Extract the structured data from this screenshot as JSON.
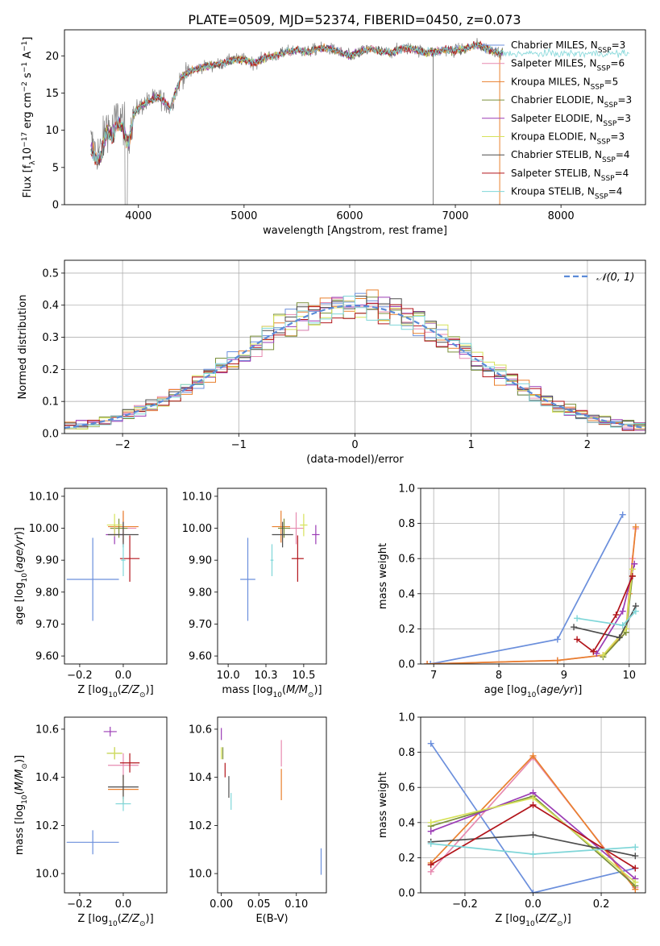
{
  "figure": {
    "title": "PLATE=0509, MJD=52374, FIBERID=0450, z=0.073"
  },
  "models": [
    {
      "name": "Chabrier MILES",
      "nssp": "3",
      "color": "#6b8fdc"
    },
    {
      "name": "Salpeter MILES",
      "nssp": "6",
      "color": "#e78ab0"
    },
    {
      "name": "Kroupa MILES",
      "nssp": "5",
      "color": "#e9802e"
    },
    {
      "name": "Chabrier ELODIE",
      "nssp": "3",
      "color": "#7a8f3a"
    },
    {
      "name": "Salpeter ELODIE",
      "nssp": "3",
      "color": "#9b3cb5"
    },
    {
      "name": "Kroupa ELODIE",
      "nssp": "3",
      "color": "#d6e25a"
    },
    {
      "name": "Chabrier STELIB",
      "nssp": "4",
      "color": "#4d4d4d"
    },
    {
      "name": "Salpeter STELIB",
      "nssp": "4",
      "color": "#b2151b"
    },
    {
      "name": "Kroupa STELIB",
      "nssp": "4",
      "color": "#7fd6d8"
    }
  ],
  "legend_text": {
    "nssp_prefix": "N",
    "nssp_sub": "SSP",
    "nssp_eq": "="
  },
  "chart_data": [
    {
      "id": "spectrum",
      "type": "line",
      "xlabel": "wavelength [Angstrom, rest frame]",
      "ylabel": "Flux [f_λ10^-17 erg cm^-2 s^-1 A^-1]",
      "xlim": [
        3300,
        8800
      ],
      "ylim": [
        0,
        23.5
      ],
      "xticks": [
        4000,
        5000,
        6000,
        7000,
        8000
      ],
      "yticks": [
        0,
        5,
        10,
        15,
        20
      ],
      "data_color": "#808080",
      "legend_position": "right",
      "x": [
        3550,
        3600,
        3650,
        3700,
        3750,
        3800,
        3850,
        3900,
        3950,
        4000,
        4100,
        4200,
        4300,
        4400,
        4500,
        4600,
        4700,
        4800,
        4900,
        5000,
        5100,
        5200,
        5300,
        5400,
        5500,
        5600,
        5700,
        5800,
        5900,
        6000,
        6100,
        6200,
        6300,
        6400,
        6500,
        6600,
        6700,
        6800,
        6900,
        7000,
        7100,
        7200,
        7300,
        7400,
        7500,
        7600,
        7700,
        7800,
        7900,
        8000,
        8100,
        8200,
        8300,
        8400,
        8500,
        8600,
        8700
      ],
      "flux": [
        8.5,
        7,
        7.5,
        11,
        10,
        12,
        11.5,
        9,
        12,
        13,
        14,
        14.5,
        13,
        17,
        18,
        18.5,
        18.7,
        19,
        19.5,
        19.5,
        19,
        19.8,
        20,
        20.5,
        20.8,
        20.5,
        21,
        21,
        20.5,
        20,
        20.5,
        21,
        20.5,
        20.5,
        21,
        21,
        20.5,
        20.5,
        20.8,
        20.7,
        21,
        21.5,
        21,
        20.5,
        20.3,
        20.3,
        20.3,
        20.3,
        20.3,
        20.3,
        20.3,
        20.3,
        20.3,
        20.3,
        20.3,
        20.3,
        20.3
      ],
      "data_xmax": 7450
    },
    {
      "id": "residuals",
      "type": "histogram",
      "xlabel": "(data-model)/error",
      "ylabel": "Normed distribution",
      "xlim": [
        -2.5,
        2.5
      ],
      "ylim": [
        0,
        0.54
      ],
      "xticks": [
        -2,
        -1,
        0,
        1,
        2
      ],
      "yticks": [
        0,
        0.1,
        0.2,
        0.3,
        0.4,
        0.5
      ],
      "grid": true,
      "gaussian_label": "𝒩(0, 1)",
      "gaussian_color": "#5b8bd8",
      "legend_position": "top-right",
      "bin_width": 0.1,
      "bin_start": -2.5
    },
    {
      "id": "age_vs_Z",
      "type": "scatter",
      "xlabel": "Z [log10(Z/Z⊙)]",
      "ylabel": "age  [log10(age/yr)]",
      "xlim": [
        -0.27,
        0.2
      ],
      "ylim": [
        9.575,
        10.125
      ],
      "xticks": [
        -0.2,
        0.0
      ],
      "yticks": [
        9.6,
        9.7,
        9.8,
        9.9,
        10.0,
        10.1
      ],
      "points": [
        {
          "model": 0,
          "x": -0.14,
          "y": 9.84,
          "xerr": 0.24,
          "yerr": 0.26
        },
        {
          "model": 1,
          "x": 0.0,
          "y": 10.0,
          "xerr": 0.12,
          "yerr": 0.1
        },
        {
          "model": 2,
          "x": 0.0,
          "y": 10.005,
          "xerr": 0.14,
          "yerr": 0.1
        },
        {
          "model": 3,
          "x": -0.02,
          "y": 10.0,
          "xerr": 0.08,
          "yerr": 0.06
        },
        {
          "model": 4,
          "x": -0.04,
          "y": 9.98,
          "xerr": 0.08,
          "yerr": 0.06
        },
        {
          "model": 5,
          "x": -0.04,
          "y": 10.01,
          "xerr": 0.07,
          "yerr": 0.07
        },
        {
          "model": 6,
          "x": 0.0,
          "y": 9.98,
          "xerr": 0.14,
          "yerr": 0.08
        },
        {
          "model": 7,
          "x": 0.03,
          "y": 9.905,
          "xerr": 0.09,
          "yerr": 0.145
        },
        {
          "model": 8,
          "x": 0.0,
          "y": 9.9,
          "xerr": 0.02,
          "yerr": 0.1
        }
      ]
    },
    {
      "id": "age_vs_mass",
      "type": "scatter",
      "xlabel": "mass [log10(M/M⊙)]",
      "ylabel": "",
      "xlim": [
        9.93,
        10.65
      ],
      "ylim": [
        9.575,
        10.125
      ],
      "xticks": [
        10.0,
        10.25,
        10.5
      ],
      "yticks": [
        9.6,
        9.7,
        9.8,
        9.9,
        10.0,
        10.1
      ],
      "points": [
        {
          "model": 0,
          "x": 10.13,
          "y": 9.84,
          "xerr": 0.1,
          "yerr": 0.26
        },
        {
          "model": 1,
          "x": 10.45,
          "y": 10.0,
          "xerr": 0.1,
          "yerr": 0.1
        },
        {
          "model": 2,
          "x": 10.35,
          "y": 10.005,
          "xerr": 0.12,
          "yerr": 0.1
        },
        {
          "model": 3,
          "x": 10.37,
          "y": 10.0,
          "xerr": 0.08,
          "yerr": 0.06
        },
        {
          "model": 4,
          "x": 10.58,
          "y": 9.98,
          "xerr": 0.05,
          "yerr": 0.06
        },
        {
          "model": 5,
          "x": 10.5,
          "y": 10.01,
          "xerr": 0.05,
          "yerr": 0.07
        },
        {
          "model": 6,
          "x": 10.36,
          "y": 9.98,
          "xerr": 0.14,
          "yerr": 0.08
        },
        {
          "model": 7,
          "x": 10.46,
          "y": 9.905,
          "xerr": 0.08,
          "yerr": 0.145
        },
        {
          "model": 8,
          "x": 10.29,
          "y": 9.9,
          "xerr": 0.02,
          "yerr": 0.1
        }
      ]
    },
    {
      "id": "weight_vs_age",
      "type": "line",
      "xlabel": "age  [log10(age/yr)]",
      "ylabel": "mass weight",
      "xlim": [
        6.8,
        10.25
      ],
      "ylim": [
        0,
        1.0
      ],
      "xticks": [
        7,
        8,
        9,
        10
      ],
      "yticks": [
        0.0,
        0.2,
        0.4,
        0.6,
        0.8,
        1.0
      ],
      "grid": true,
      "series": [
        {
          "model": 0,
          "x": [
            6.95,
            8.9,
            9.9
          ],
          "y": [
            0.0,
            0.14,
            0.85
          ]
        },
        {
          "model": 1,
          "x": [
            6.9,
            8.9,
            9.6,
            9.95,
            10.05,
            10.1
          ],
          "y": [
            0.0,
            0.02,
            0.05,
            0.2,
            0.6,
            0.77
          ]
        },
        {
          "model": 2,
          "x": [
            6.9,
            8.9,
            9.6,
            9.95,
            10.0,
            10.1
          ],
          "y": [
            0.0,
            0.02,
            0.05,
            0.18,
            0.4,
            0.78
          ]
        },
        {
          "model": 3,
          "x": [
            9.6,
            9.95,
            10.05
          ],
          "y": [
            0.04,
            0.18,
            0.5
          ]
        },
        {
          "model": 4,
          "x": [
            9.5,
            9.9,
            10.08
          ],
          "y": [
            0.06,
            0.3,
            0.57
          ]
        },
        {
          "model": 5,
          "x": [
            9.6,
            9.95,
            10.05
          ],
          "y": [
            0.05,
            0.2,
            0.54
          ]
        },
        {
          "model": 6,
          "x": [
            9.15,
            9.85,
            10.1
          ],
          "y": [
            0.21,
            0.15,
            0.33
          ]
        },
        {
          "model": 7,
          "x": [
            9.2,
            9.45,
            9.8,
            10.05
          ],
          "y": [
            0.14,
            0.07,
            0.28,
            0.5
          ]
        },
        {
          "model": 8,
          "x": [
            9.2,
            9.9,
            10.1
          ],
          "y": [
            0.26,
            0.22,
            0.3
          ]
        }
      ]
    },
    {
      "id": "mass_vs_Z",
      "type": "scatter",
      "xlabel": "Z [log10(Z/Z⊙)]",
      "ylabel": "mass [log10(M/M⊙)]",
      "xlim": [
        -0.27,
        0.2
      ],
      "ylim": [
        9.92,
        10.65
      ],
      "xticks": [
        -0.2,
        0.0
      ],
      "yticks": [
        10.0,
        10.2,
        10.4,
        10.6
      ],
      "points": [
        {
          "model": 0,
          "x": -0.14,
          "y": 10.13,
          "xerr": 0.24,
          "yerr": 0.1
        },
        {
          "model": 1,
          "x": 0.0,
          "y": 10.45,
          "xerr": 0.14,
          "yerr": 0.1
        },
        {
          "model": 2,
          "x": 0.0,
          "y": 10.35,
          "xerr": 0.14,
          "yerr": 0.12
        },
        {
          "model": 3,
          "x": -0.04,
          "y": 10.5,
          "xerr": 0.07,
          "yerr": 0.05
        },
        {
          "model": 4,
          "x": -0.06,
          "y": 10.59,
          "xerr": 0.06,
          "yerr": 0.04
        },
        {
          "model": 5,
          "x": -0.04,
          "y": 10.5,
          "xerr": 0.07,
          "yerr": 0.05
        },
        {
          "model": 6,
          "x": 0.0,
          "y": 10.36,
          "xerr": 0.14,
          "yerr": 0.1
        },
        {
          "model": 7,
          "x": 0.03,
          "y": 10.46,
          "xerr": 0.09,
          "yerr": 0.08
        },
        {
          "model": 8,
          "x": 0.0,
          "y": 10.29,
          "xerr": 0.07,
          "yerr": 0.06
        }
      ]
    },
    {
      "id": "mass_vs_ebv",
      "type": "scatter",
      "xlabel": "E(B-V)",
      "ylabel": "",
      "xlim": [
        -0.005,
        0.14
      ],
      "ylim": [
        9.92,
        10.65
      ],
      "xticks": [
        0.0,
        0.05,
        0.1
      ],
      "yticks": [
        10.0,
        10.2,
        10.4,
        10.6
      ],
      "points": [
        {
          "model": 0,
          "x": 0.133,
          "y": 10.05,
          "xerr": 0,
          "yerr": 0.11
        },
        {
          "model": 1,
          "x": 0.08,
          "y": 10.5,
          "xerr": 0,
          "yerr": 0.11
        },
        {
          "model": 2,
          "x": 0.08,
          "y": 10.37,
          "xerr": 0,
          "yerr": 0.13
        },
        {
          "model": 3,
          "x": 0.002,
          "y": 10.5,
          "xerr": 0,
          "yerr": 0.05
        },
        {
          "model": 4,
          "x": 0.0,
          "y": 10.58,
          "xerr": 0,
          "yerr": 0.05
        },
        {
          "model": 5,
          "x": 0.0,
          "y": 10.5,
          "xerr": 0,
          "yerr": 0.05
        },
        {
          "model": 6,
          "x": 0.01,
          "y": 10.36,
          "xerr": 0,
          "yerr": 0.09
        },
        {
          "model": 7,
          "x": 0.005,
          "y": 10.43,
          "xerr": 0,
          "yerr": 0.06
        },
        {
          "model": 8,
          "x": 0.013,
          "y": 10.3,
          "xerr": 0,
          "yerr": 0.07
        }
      ]
    },
    {
      "id": "weight_vs_Z",
      "type": "line",
      "xlabel": "Z [log10(Z/Z⊙)]",
      "ylabel": "mass weight",
      "xlim": [
        -0.33,
        0.33
      ],
      "ylim": [
        0,
        1.0
      ],
      "xticks": [
        -0.2,
        0.0,
        0.2
      ],
      "yticks": [
        0.0,
        0.2,
        0.4,
        0.6,
        0.8,
        1.0
      ],
      "grid": true,
      "series": [
        {
          "model": 0,
          "x": [
            -0.3,
            0.0,
            0.3
          ],
          "y": [
            0.85,
            0.0,
            0.14
          ]
        },
        {
          "model": 1,
          "x": [
            -0.3,
            0.0,
            0.3
          ],
          "y": [
            0.12,
            0.77,
            0.03
          ]
        },
        {
          "model": 2,
          "x": [
            -0.3,
            0.0,
            0.3
          ],
          "y": [
            0.17,
            0.78,
            0.02
          ]
        },
        {
          "model": 3,
          "x": [
            -0.3,
            0.0,
            0.3
          ],
          "y": [
            0.38,
            0.55,
            0.04
          ]
        },
        {
          "model": 4,
          "x": [
            -0.3,
            0.0,
            0.3
          ],
          "y": [
            0.35,
            0.57,
            0.08
          ]
        },
        {
          "model": 5,
          "x": [
            -0.3,
            0.0,
            0.3
          ],
          "y": [
            0.4,
            0.54,
            0.06
          ]
        },
        {
          "model": 6,
          "x": [
            -0.3,
            0.0,
            0.3
          ],
          "y": [
            0.29,
            0.33,
            0.21
          ]
        },
        {
          "model": 7,
          "x": [
            -0.3,
            0.0,
            0.3
          ],
          "y": [
            0.16,
            0.5,
            0.14
          ]
        },
        {
          "model": 8,
          "x": [
            -0.3,
            0.0,
            0.3
          ],
          "y": [
            0.28,
            0.22,
            0.26
          ]
        }
      ]
    }
  ]
}
